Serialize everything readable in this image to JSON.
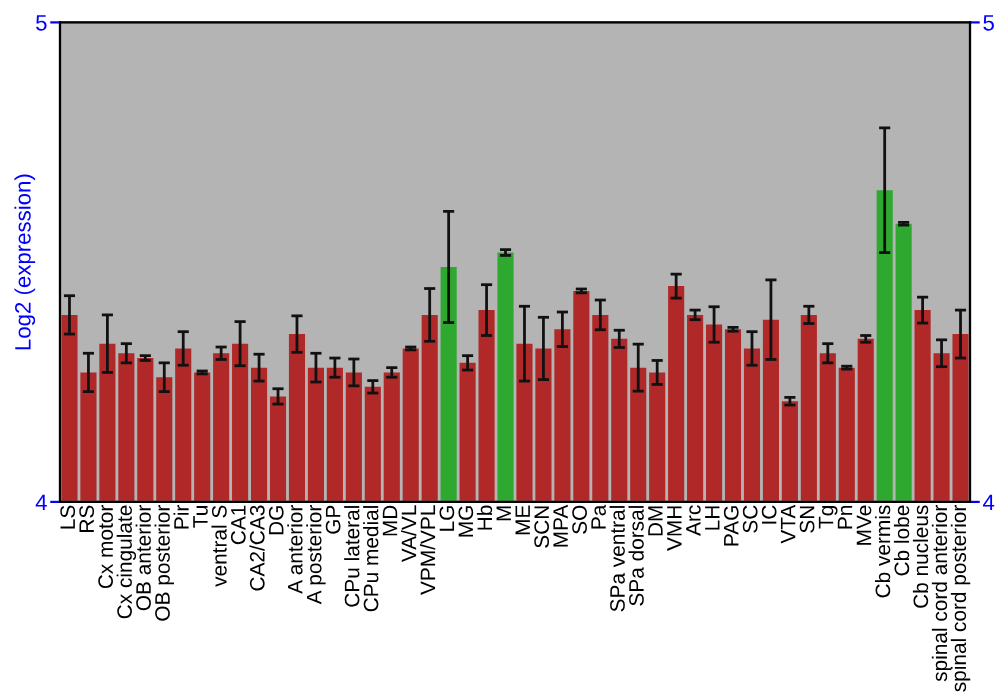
{
  "chart_data": {
    "type": "bar",
    "ylabel": "Log2 (expression)",
    "categories": [
      "LS",
      "RS",
      "Cx motor",
      "Cx cingulate",
      "OB anterior",
      "OB posterior",
      "Pir",
      "Tu",
      "ventral S",
      "CA1",
      "CA2/CA3",
      "DG",
      "A anterior",
      "A posterior",
      "GP",
      "CPu lateral",
      "CPu medial",
      "MD",
      "VA/VL",
      "VPM/VPL",
      "LG",
      "MG",
      "Hb",
      "M",
      "ME",
      "SCN",
      "MPA",
      "SO",
      "Pa",
      "SPa ventral",
      "SPa dorsal",
      "DM",
      "VMH",
      "Arc",
      "LH",
      "PAG",
      "SC",
      "IC",
      "VTA",
      "SN",
      "Tg",
      "Pn",
      "MVe",
      "Cb vermis",
      "Cb lobe",
      "Cb nucleus",
      "spinal cord anterior",
      "spinal cord posterior"
    ],
    "values": [
      4.39,
      4.27,
      4.33,
      4.31,
      4.3,
      4.26,
      4.32,
      4.27,
      4.31,
      4.33,
      4.28,
      4.22,
      4.35,
      4.28,
      4.28,
      4.27,
      4.24,
      4.27,
      4.32,
      4.39,
      4.49,
      4.29,
      4.4,
      4.52,
      4.33,
      4.32,
      4.36,
      4.44,
      4.39,
      4.34,
      4.28,
      4.27,
      4.45,
      4.39,
      4.37,
      4.36,
      4.32,
      4.38,
      4.21,
      4.39,
      4.31,
      4.28,
      4.34,
      4.65,
      4.58,
      4.4,
      4.31,
      4.35
    ],
    "errors": [
      0.04,
      0.04,
      0.06,
      0.02,
      0.005,
      0.03,
      0.035,
      0.003,
      0.013,
      0.046,
      0.028,
      0.016,
      0.038,
      0.03,
      0.02,
      0.028,
      0.013,
      0.01,
      0.003,
      0.055,
      0.116,
      0.015,
      0.053,
      0.006,
      0.078,
      0.065,
      0.036,
      0.004,
      0.031,
      0.018,
      0.049,
      0.025,
      0.025,
      0.01,
      0.037,
      0.004,
      0.035,
      0.083,
      0.008,
      0.018,
      0.02,
      0.003,
      0.007,
      0.13,
      0.003,
      0.027,
      0.028,
      0.05
    ],
    "colors": [
      "#b02828",
      "#b02828",
      "#b02828",
      "#b02828",
      "#b02828",
      "#b02828",
      "#b02828",
      "#b02828",
      "#b02828",
      "#b02828",
      "#b02828",
      "#b02828",
      "#b02828",
      "#b02828",
      "#b02828",
      "#b02828",
      "#b02828",
      "#b02828",
      "#b02828",
      "#b02828",
      "#2ea82e",
      "#b02828",
      "#b02828",
      "#2ea82e",
      "#b02828",
      "#b02828",
      "#b02828",
      "#b02828",
      "#b02828",
      "#b02828",
      "#b02828",
      "#b02828",
      "#b02828",
      "#b02828",
      "#b02828",
      "#b02828",
      "#b02828",
      "#b02828",
      "#b02828",
      "#b02828",
      "#b02828",
      "#b02828",
      "#b02828",
      "#2ea82e",
      "#2ea82e",
      "#b02828",
      "#b02828",
      "#b02828"
    ],
    "ylim": [
      4,
      5
    ],
    "yticks": [
      4,
      5
    ],
    "y2lim": [
      4,
      5
    ],
    "y2ticks": [
      4,
      5
    ],
    "grid": false
  }
}
